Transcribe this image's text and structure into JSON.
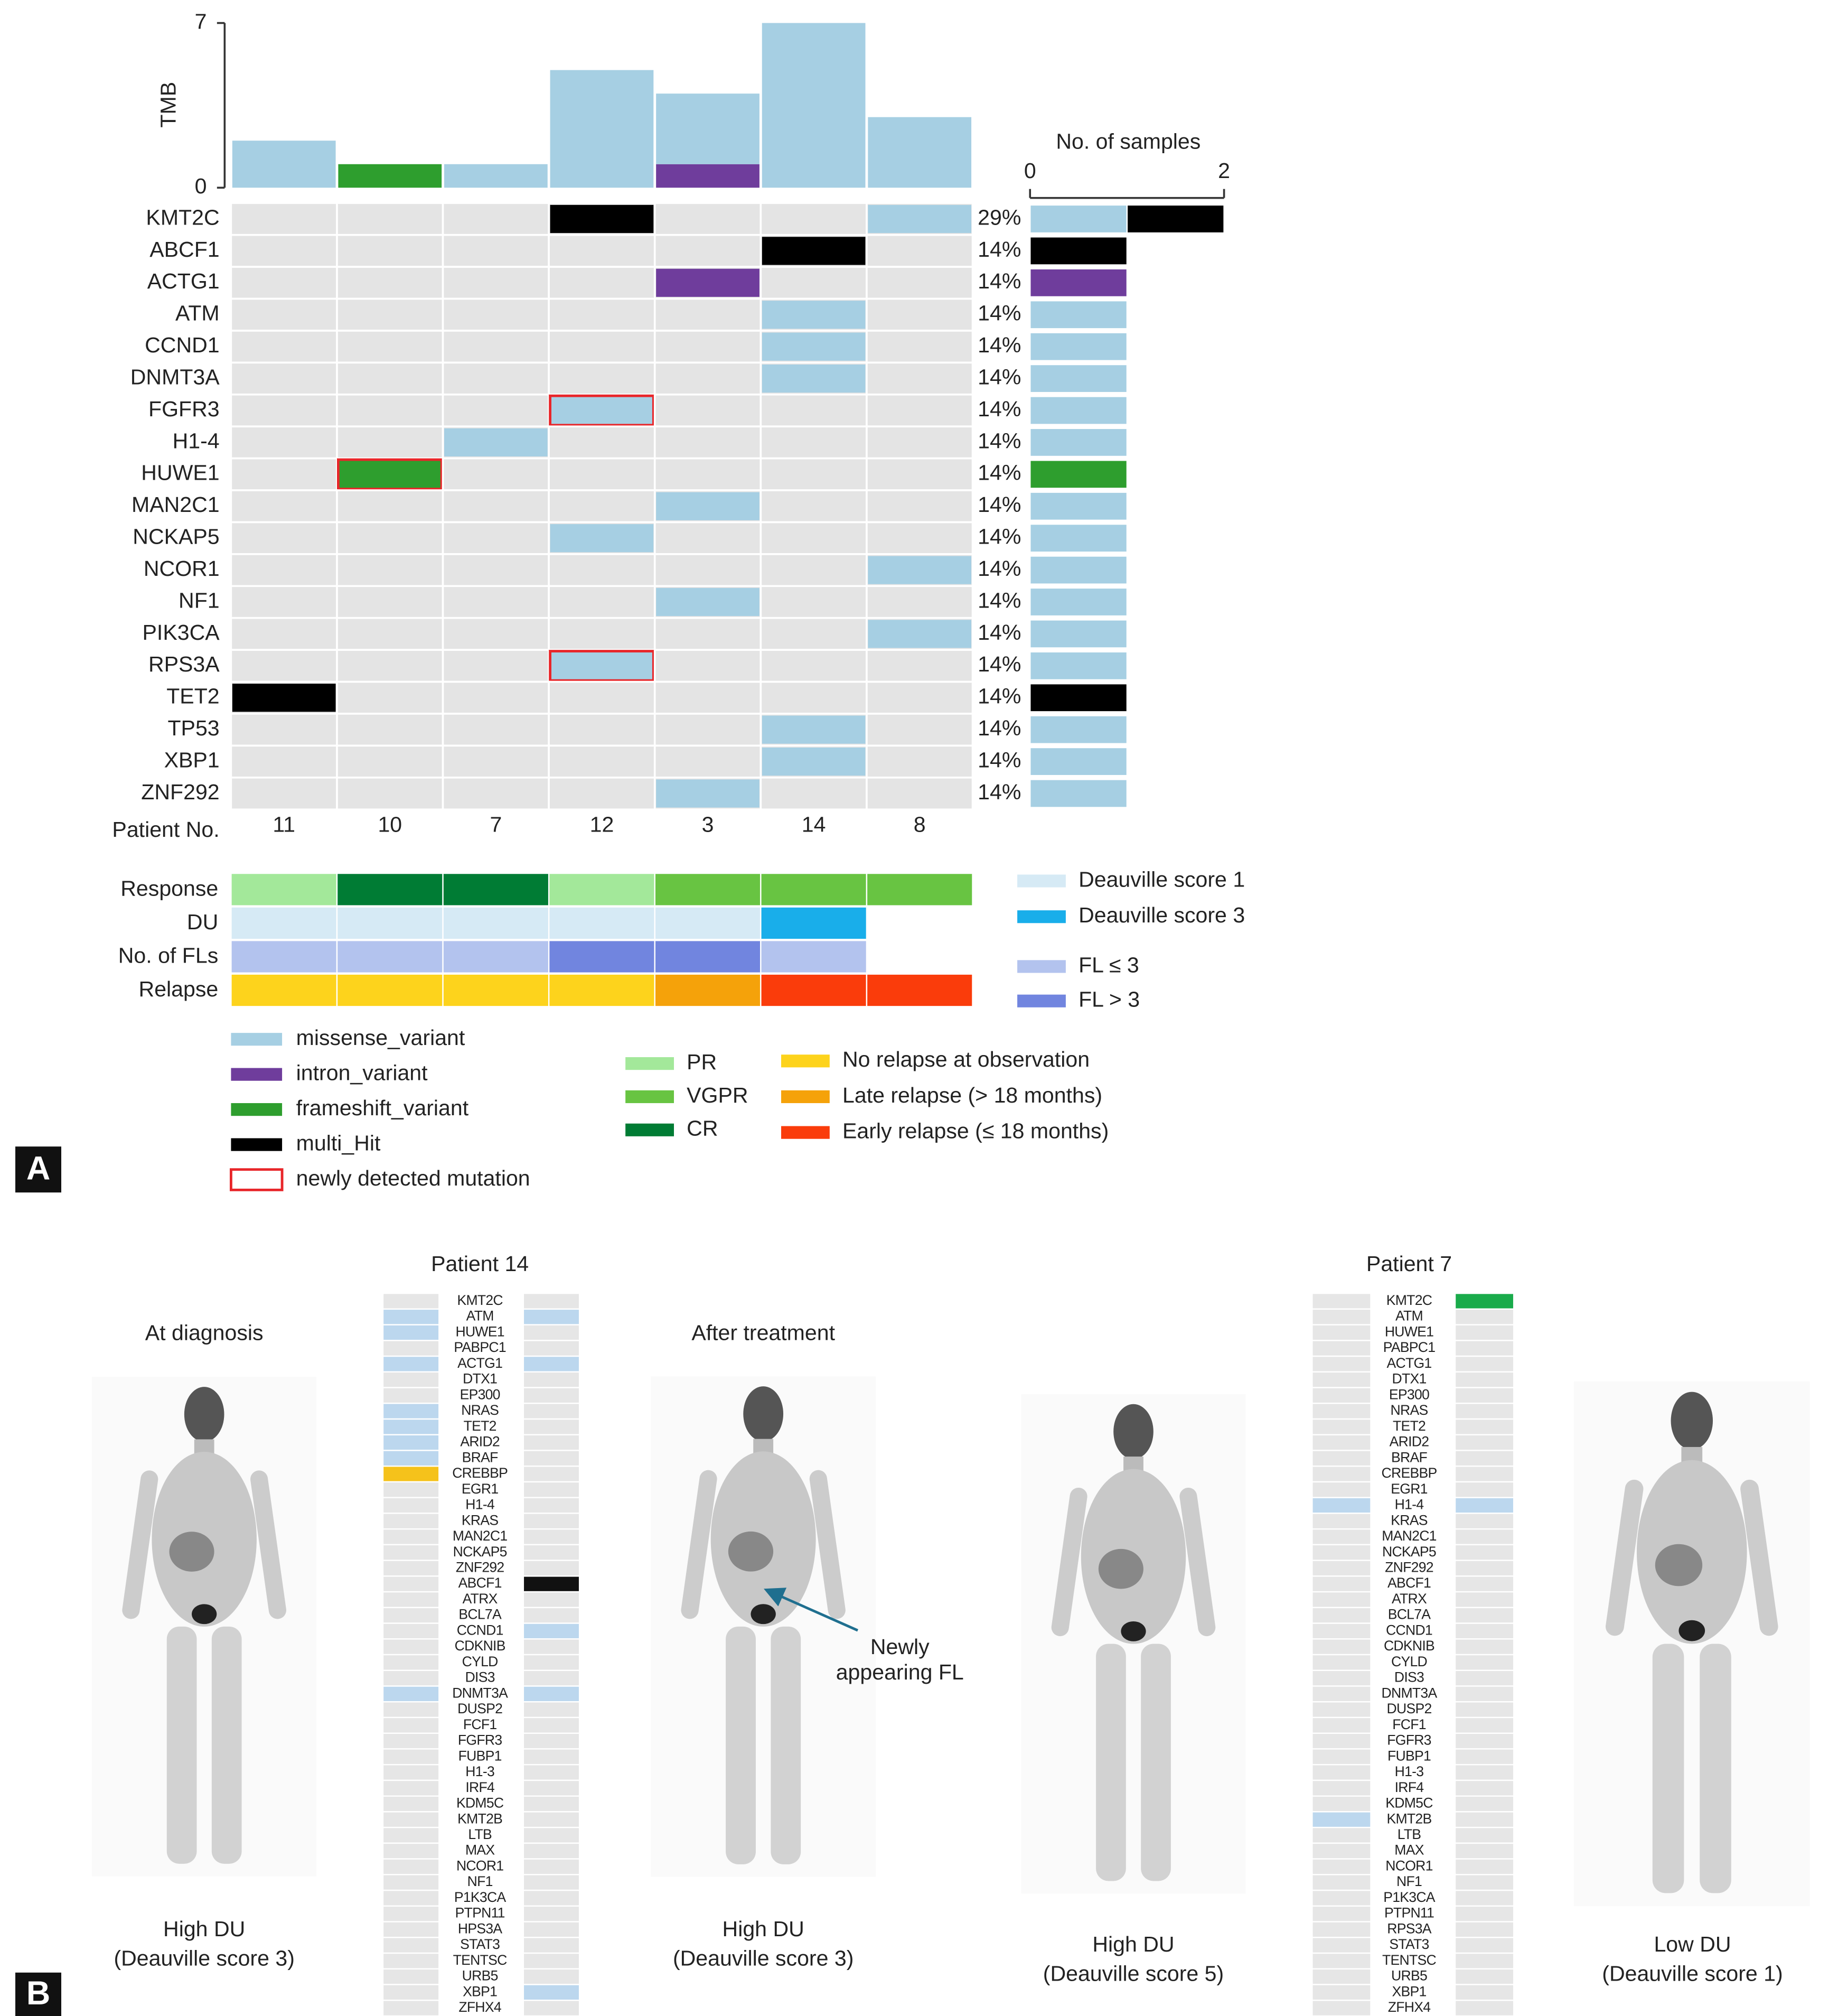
{
  "panel_a": {
    "label": "A",
    "tmb": {
      "type": "bar",
      "axis_label": "TMB",
      "ylim": [
        0,
        7
      ],
      "yticks": [
        0,
        7
      ],
      "series": [
        {
          "variant": "intron_variant",
          "values": [
            0,
            0,
            0,
            0,
            1,
            0,
            0
          ]
        },
        {
          "variant": "frameshift_variant",
          "values": [
            0,
            1,
            0,
            0,
            0,
            0,
            0
          ]
        },
        {
          "variant": "missense_variant",
          "values": [
            2,
            0,
            1,
            5,
            3,
            7,
            3
          ]
        }
      ]
    },
    "variants": [
      {
        "name": "missense_variant",
        "color": "#a6cfe3"
      },
      {
        "name": "intron_variant",
        "color": "#6f3d9c"
      },
      {
        "name": "frameshift_variant",
        "color": "#2e9e2e"
      },
      {
        "name": "multi_Hit",
        "color": "#000000"
      },
      {
        "name": "newly detected mutation",
        "color": "#e8262a"
      }
    ],
    "patient_label": "Patient No.",
    "patients": [
      "11",
      "10",
      "7",
      "12",
      "3",
      "14",
      "8"
    ],
    "samples_axis": {
      "title": "No. of samples",
      "xlim": [
        0,
        2
      ],
      "xticks": [
        0,
        2
      ]
    },
    "genes": [
      {
        "name": "KMT2C",
        "percent": 29,
        "percent_label": "29%",
        "cells": [
          null,
          null,
          null,
          {
            "variant": "multi_Hit",
            "new": false
          },
          null,
          null,
          {
            "variant": "missense_variant",
            "new": false
          }
        ],
        "samples": [
          {
            "variant": "missense_variant",
            "n": 1
          },
          {
            "variant": "multi_Hit",
            "n": 1
          }
        ]
      },
      {
        "name": "ABCF1",
        "percent": 14,
        "percent_label": "14%",
        "cells": [
          null,
          null,
          null,
          null,
          null,
          {
            "variant": "multi_Hit",
            "new": false
          },
          null
        ],
        "samples": [
          {
            "variant": "multi_Hit",
            "n": 1
          }
        ]
      },
      {
        "name": "ACTG1",
        "percent": 14,
        "percent_label": "14%",
        "cells": [
          null,
          null,
          null,
          null,
          {
            "variant": "intron_variant",
            "new": false
          },
          null,
          null
        ],
        "samples": [
          {
            "variant": "intron_variant",
            "n": 1
          }
        ]
      },
      {
        "name": "ATM",
        "percent": 14,
        "percent_label": "14%",
        "cells": [
          null,
          null,
          null,
          null,
          null,
          {
            "variant": "missense_variant",
            "new": false
          },
          null
        ],
        "samples": [
          {
            "variant": "missense_variant",
            "n": 1
          }
        ]
      },
      {
        "name": "CCND1",
        "percent": 14,
        "percent_label": "14%",
        "cells": [
          null,
          null,
          null,
          null,
          null,
          {
            "variant": "missense_variant",
            "new": false
          },
          null
        ],
        "samples": [
          {
            "variant": "missense_variant",
            "n": 1
          }
        ]
      },
      {
        "name": "DNMT3A",
        "percent": 14,
        "percent_label": "14%",
        "cells": [
          null,
          null,
          null,
          null,
          null,
          {
            "variant": "missense_variant",
            "new": false
          },
          null
        ],
        "samples": [
          {
            "variant": "missense_variant",
            "n": 1
          }
        ]
      },
      {
        "name": "FGFR3",
        "percent": 14,
        "percent_label": "14%",
        "cells": [
          null,
          null,
          null,
          {
            "variant": "missense_variant",
            "new": true
          },
          null,
          null,
          null
        ],
        "samples": [
          {
            "variant": "missense_variant",
            "n": 1
          }
        ]
      },
      {
        "name": "H1-4",
        "percent": 14,
        "percent_label": "14%",
        "cells": [
          null,
          null,
          {
            "variant": "missense_variant",
            "new": false
          },
          null,
          null,
          null,
          null
        ],
        "samples": [
          {
            "variant": "missense_variant",
            "n": 1
          }
        ]
      },
      {
        "name": "HUWE1",
        "percent": 14,
        "percent_label": "14%",
        "cells": [
          null,
          {
            "variant": "frameshift_variant",
            "new": true
          },
          null,
          null,
          null,
          null,
          null
        ],
        "samples": [
          {
            "variant": "frameshift_variant",
            "n": 1
          }
        ]
      },
      {
        "name": "MAN2C1",
        "percent": 14,
        "percent_label": "14%",
        "cells": [
          null,
          null,
          null,
          null,
          {
            "variant": "missense_variant",
            "new": false
          },
          null,
          null
        ],
        "samples": [
          {
            "variant": "missense_variant",
            "n": 1
          }
        ]
      },
      {
        "name": "NCKAP5",
        "percent": 14,
        "percent_label": "14%",
        "cells": [
          null,
          null,
          null,
          {
            "variant": "missense_variant",
            "new": false
          },
          null,
          null,
          null
        ],
        "samples": [
          {
            "variant": "missense_variant",
            "n": 1
          }
        ]
      },
      {
        "name": "NCOR1",
        "percent": 14,
        "percent_label": "14%",
        "cells": [
          null,
          null,
          null,
          null,
          null,
          null,
          {
            "variant": "missense_variant",
            "new": false
          }
        ],
        "samples": [
          {
            "variant": "missense_variant",
            "n": 1
          }
        ]
      },
      {
        "name": "NF1",
        "percent": 14,
        "percent_label": "14%",
        "cells": [
          null,
          null,
          null,
          null,
          {
            "variant": "missense_variant",
            "new": false
          },
          null,
          null
        ],
        "samples": [
          {
            "variant": "missense_variant",
            "n": 1
          }
        ]
      },
      {
        "name": "PIK3CA",
        "percent": 14,
        "percent_label": "14%",
        "cells": [
          null,
          null,
          null,
          null,
          null,
          null,
          {
            "variant": "missense_variant",
            "new": false
          }
        ],
        "samples": [
          {
            "variant": "missense_variant",
            "n": 1
          }
        ]
      },
      {
        "name": "RPS3A",
        "percent": 14,
        "percent_label": "14%",
        "cells": [
          null,
          null,
          null,
          {
            "variant": "missense_variant",
            "new": true
          },
          null,
          null,
          null
        ],
        "samples": [
          {
            "variant": "missense_variant",
            "n": 1
          }
        ]
      },
      {
        "name": "TET2",
        "percent": 14,
        "percent_label": "14%",
        "cells": [
          {
            "variant": "multi_Hit",
            "new": false
          },
          null,
          null,
          null,
          null,
          null,
          null
        ],
        "samples": [
          {
            "variant": "multi_Hit",
            "n": 1
          }
        ]
      },
      {
        "name": "TP53",
        "percent": 14,
        "percent_label": "14%",
        "cells": [
          null,
          null,
          null,
          null,
          null,
          {
            "variant": "missense_variant",
            "new": false
          },
          null
        ],
        "samples": [
          {
            "variant": "missense_variant",
            "n": 1
          }
        ]
      },
      {
        "name": "XBP1",
        "percent": 14,
        "percent_label": "14%",
        "cells": [
          null,
          null,
          null,
          null,
          null,
          {
            "variant": "missense_variant",
            "new": false
          },
          null
        ],
        "samples": [
          {
            "variant": "missense_variant",
            "n": 1
          }
        ]
      },
      {
        "name": "ZNF292",
        "percent": 14,
        "percent_label": "14%",
        "cells": [
          null,
          null,
          null,
          null,
          {
            "variant": "missense_variant",
            "new": false
          },
          null,
          null
        ],
        "samples": [
          {
            "variant": "missense_variant",
            "n": 1
          }
        ]
      }
    ],
    "tracks": [
      {
        "name": "Response",
        "values": [
          "PR",
          "CR",
          "CR",
          "PR",
          "VGPR",
          "VGPR",
          "VGPR"
        ]
      },
      {
        "name": "DU",
        "values": [
          "Deauville score 1",
          "Deauville score 1",
          "Deauville score 1",
          "Deauville score 1",
          "Deauville score 1",
          "Deauville score 3",
          null
        ]
      },
      {
        "name": "No. of FLs",
        "values": [
          "FL ≤ 3",
          "FL ≤ 3",
          "FL ≤ 3",
          "FL > 3",
          "FL > 3",
          "FL ≤ 3",
          null
        ]
      },
      {
        "name": "Relapse",
        "values": [
          "No relapse at observation",
          "No relapse at observation",
          "No relapse at observation",
          "No relapse at observation",
          "Late relapse (> 18 months)",
          "Early relapse (≤ 18 months)",
          "Early relapse (≤ 18 months)"
        ]
      }
    ],
    "track_keys": [
      {
        "name": "Deauville score 1",
        "color": "#d6eaf5"
      },
      {
        "name": "Deauville score 3",
        "color": "#19aeea"
      },
      {
        "name": "FL ≤ 3",
        "color": "#b3c3ee"
      },
      {
        "name": "FL > 3",
        "color": "#7185df"
      },
      {
        "name": "PR",
        "color": "#a3e89a"
      },
      {
        "name": "VGPR",
        "color": "#68c442"
      },
      {
        "name": "CR",
        "color": "#007c34"
      },
      {
        "name": "No relapse at observation",
        "color": "#fdd31c"
      },
      {
        "name": "Late relapse (> 18 months)",
        "color": "#f5a20a"
      },
      {
        "name": "Early relapse (≤ 18 months)",
        "color": "#fa3c0b"
      }
    ]
  },
  "panel_b": {
    "label": "B",
    "patients": [
      {
        "title": "Patient 14",
        "genes": [
          "KMT2C",
          "ATM",
          "HUWE1",
          "PABPC1",
          "ACTG1",
          "DTX1",
          "EP300",
          "NRAS",
          "TET2",
          "ARID2",
          "BRAF",
          "CREBBP",
          "EGR1",
          "H1-4",
          "KRAS",
          "MAN2C1",
          "NCKAP5",
          "ZNF292",
          "ABCF1",
          "ATRX",
          "BCL7A",
          "CCND1",
          "CDKNIB",
          "CYLD",
          "DIS3",
          "DNMT3A",
          "DUSP2",
          "FCF1",
          "FGFR3",
          "FUBP1",
          "H1-3",
          "IRF4",
          "KDM5C",
          "KMT2B",
          "LTB",
          "MAX",
          "NCOR1",
          "NF1",
          "P1K3CA",
          "PTPN11",
          "HPS3A",
          "STAT3",
          "TENTSC",
          "URB5",
          "XBP1",
          "ZFHX4"
        ],
        "before": {
          "ATM": "#bcd7ee",
          "HUWE1": "#bcd7ee",
          "ACTG1": "#bcd7ee",
          "NRAS": "#bcd7ee",
          "TET2": "#bcd7ee",
          "ARID2": "#bcd7ee",
          "BRAF": "#bcd7ee",
          "CREBBP": "#f5c21b",
          "DNMT3A": "#bcd7ee"
        },
        "after": {
          "ATM": "#bcd7ee",
          "ACTG1": "#bcd7ee",
          "ABCF1": "#111111",
          "CCND1": "#bcd7ee",
          "DNMT3A": "#bcd7ee",
          "XBP1": "#bcd7ee"
        }
      },
      {
        "title": "Patient 7",
        "genes": [
          "KMT2C",
          "ATM",
          "HUWE1",
          "PABPC1",
          "ACTG1",
          "DTX1",
          "EP300",
          "NRAS",
          "TET2",
          "ARID2",
          "BRAF",
          "CREBBP",
          "EGR1",
          "H1-4",
          "KRAS",
          "MAN2C1",
          "NCKAP5",
          "ZNF292",
          "ABCF1",
          "ATRX",
          "BCL7A",
          "CCND1",
          "CDKNIB",
          "CYLD",
          "DIS3",
          "DNMT3A",
          "DUSP2",
          "FCF1",
          "FGFR3",
          "FUBP1",
          "H1-3",
          "IRF4",
          "KDM5C",
          "KMT2B",
          "LTB",
          "MAX",
          "NCOR1",
          "NF1",
          "P1K3CA",
          "PTPN11",
          "RPS3A",
          "STAT3",
          "TENTSC",
          "URB5",
          "XBP1",
          "ZFHX4"
        ],
        "before": {
          "H1-4": "#bcd7ee",
          "KMT2B": "#bcd7ee"
        },
        "after": {
          "KMT2C": "#1aab4b",
          "H1-4": "#bcd7ee"
        }
      }
    ],
    "captions": [
      {
        "top": "At diagnosis",
        "bottom": [
          "High DU",
          "(Deauville score 3)"
        ]
      },
      {
        "top": "After treatment",
        "bottom": [
          "High DU",
          "(Deauville score 3)"
        ]
      },
      {
        "bottom": [
          "High DU",
          "(Deauville score 5)"
        ]
      },
      {
        "bottom": [
          "Low DU",
          "(Deauville score 1)"
        ]
      }
    ],
    "annotation": [
      "Newly",
      "appearing FL"
    ]
  }
}
